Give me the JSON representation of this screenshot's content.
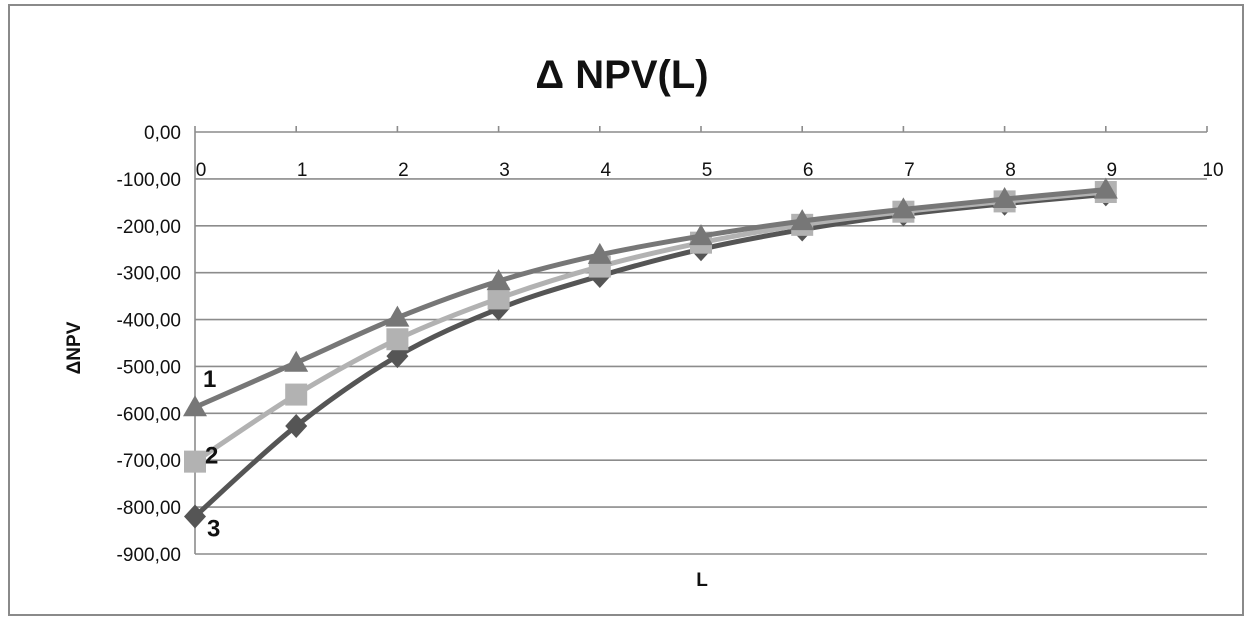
{
  "chart_data": {
    "type": "line",
    "title": "Δ NPV(L)",
    "xlabel": "L",
    "ylabel": "ΔNPV",
    "xlim": [
      0,
      10
    ],
    "ylim": [
      -900,
      0
    ],
    "x_ticks": [
      "0",
      "1",
      "2",
      "3",
      "4",
      "5",
      "6",
      "7",
      "8",
      "9",
      "10"
    ],
    "y_ticks": [
      "0,00",
      "-100,00",
      "-200,00",
      "-300,00",
      "-400,00",
      "-500,00",
      "-600,00",
      "-700,00",
      "-800,00",
      "-900,00"
    ],
    "grid": "horizontal",
    "x_axis_position": "top",
    "legend": "none",
    "x": [
      0,
      1,
      2,
      3,
      4,
      5,
      6,
      7,
      8,
      9
    ],
    "series": [
      {
        "name": "1",
        "marker": "triangle",
        "color": "#777777",
        "values": [
          -587,
          -492,
          -396,
          -318,
          -262,
          -222,
          -190,
          -165,
          -143,
          -123
        ]
      },
      {
        "name": "2",
        "marker": "square",
        "color": "#b2b2b2",
        "values": [
          -703,
          -560,
          -442,
          -355,
          -287,
          -236,
          -198,
          -170,
          -148,
          -128
        ]
      },
      {
        "name": "3",
        "marker": "diamond",
        "color": "#555555",
        "values": [
          -820,
          -627,
          -478,
          -377,
          -307,
          -250,
          -208,
          -176,
          -153,
          -133
        ]
      }
    ]
  }
}
